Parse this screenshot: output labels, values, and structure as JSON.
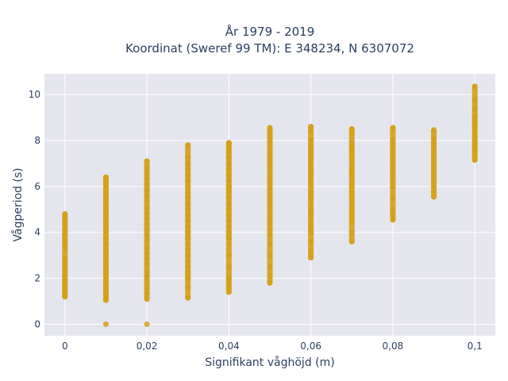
{
  "chart_data": {
    "type": "scatter",
    "title_line1": "År 1979 - 2019",
    "title_line2": "Koordinat (Sweref 99 TM): E 348234, N 6307072",
    "xlabel": "Signifikant våghöjd (m)",
    "ylabel": "Vågperiod (s)",
    "xlim": [
      -0.005,
      0.105
    ],
    "ylim": [
      -0.5,
      10.9
    ],
    "xticks": [
      0,
      0.02,
      0.04,
      0.06,
      0.08,
      0.1
    ],
    "xtick_labels": [
      "0",
      "0,02",
      "0,04",
      "0,06",
      "0,08",
      "0,1"
    ],
    "yticks": [
      0,
      2,
      4,
      6,
      8,
      10
    ],
    "ytick_labels": [
      "0",
      "2",
      "4",
      "6",
      "8",
      "10"
    ],
    "grid": true,
    "marker_color": "#D4A017",
    "plot_bg": "#E5E5EE",
    "series": [
      {
        "x": [
          0,
          0,
          0,
          0,
          0,
          0,
          0,
          0,
          0,
          0,
          0,
          0,
          0,
          0,
          0,
          0,
          0,
          0,
          0,
          0,
          0,
          0
        ],
        "y": [
          4.8,
          4.65,
          4.45,
          4.3,
          4.1,
          3.9,
          3.7,
          3.5,
          3.35,
          2.85,
          2.7,
          2.55,
          2.35,
          2.15,
          2.0,
          1.85,
          1.7,
          1.6,
          1.5,
          1.4,
          1.3,
          1.2
        ]
      },
      {
        "x": [
          0.01,
          0.01,
          0.01,
          0.01,
          0.01,
          0.01,
          0.01,
          0.01,
          0.01,
          0.01,
          0.01,
          0.01,
          0.01,
          0.01,
          0.01,
          0.01,
          0.01,
          0.01,
          0.01,
          0.01,
          0.01,
          0.01,
          0.01
        ],
        "y": [
          6.4,
          6.2,
          6.0,
          5.75,
          5.5,
          5.25,
          5.0,
          4.75,
          4.5,
          4.25,
          4.0,
          3.75,
          3.5,
          3.25,
          3.0,
          2.75,
          2.5,
          2.25,
          2.0,
          1.75,
          1.5,
          1.25,
          1.05
        ]
      },
      {
        "x": [
          0.01,
          0.02
        ],
        "y": [
          0.0,
          0.0
        ]
      },
      {
        "x": [
          0.02,
          0.02,
          0.02,
          0.02,
          0.02,
          0.02,
          0.02,
          0.02,
          0.02,
          0.02,
          0.02,
          0.02,
          0.02,
          0.02,
          0.02,
          0.02,
          0.02,
          0.02,
          0.02,
          0.02,
          0.02,
          0.02,
          0.02,
          0.02,
          0.02
        ],
        "y": [
          7.1,
          6.85,
          6.6,
          6.35,
          6.1,
          5.85,
          5.6,
          5.35,
          5.1,
          4.85,
          4.6,
          4.35,
          4.1,
          3.85,
          3.6,
          3.35,
          3.1,
          2.85,
          2.6,
          2.35,
          2.1,
          1.85,
          1.6,
          1.35,
          1.1
        ]
      },
      {
        "x": [
          0.03,
          0.03,
          0.03,
          0.03,
          0.03,
          0.03,
          0.03,
          0.03,
          0.03,
          0.03,
          0.03,
          0.03,
          0.03,
          0.03,
          0.03,
          0.03,
          0.03,
          0.03,
          0.03,
          0.03,
          0.03,
          0.03,
          0.03,
          0.03,
          0.03
        ],
        "y": [
          7.8,
          7.25,
          7.0,
          6.75,
          6.5,
          6.25,
          6.0,
          5.75,
          5.5,
          5.25,
          5.0,
          4.75,
          4.5,
          4.25,
          4.0,
          3.75,
          3.5,
          3.25,
          3.0,
          2.75,
          2.5,
          2.25,
          2.0,
          1.6,
          1.15
        ]
      },
      {
        "x": [
          0.04,
          0.04,
          0.04,
          0.04,
          0.04,
          0.04,
          0.04,
          0.04,
          0.04,
          0.04,
          0.04,
          0.04,
          0.04,
          0.04,
          0.04,
          0.04,
          0.04,
          0.04,
          0.04,
          0.04,
          0.04,
          0.04,
          0.04,
          0.04,
          0.04
        ],
        "y": [
          7.9,
          7.7,
          7.5,
          7.25,
          7.0,
          6.75,
          6.5,
          6.25,
          6.0,
          5.75,
          5.5,
          5.25,
          5.0,
          4.75,
          4.5,
          4.25,
          4.0,
          3.75,
          3.5,
          3.0,
          2.5,
          2.0,
          1.75,
          1.55,
          1.4
        ]
      },
      {
        "x": [
          0.05,
          0.05,
          0.05,
          0.05,
          0.05,
          0.05,
          0.05,
          0.05,
          0.05,
          0.05,
          0.05,
          0.05,
          0.05,
          0.05,
          0.05,
          0.05,
          0.05,
          0.05,
          0.05,
          0.05,
          0.05,
          0.05,
          0.05,
          0.05,
          0.05
        ],
        "y": [
          8.55,
          8.35,
          8.15,
          7.9,
          7.65,
          7.4,
          7.15,
          6.9,
          6.65,
          6.4,
          6.15,
          5.9,
          5.65,
          5.4,
          5.15,
          4.9,
          4.65,
          4.4,
          4.15,
          3.9,
          3.5,
          3.0,
          2.5,
          2.1,
          1.8
        ]
      },
      {
        "x": [
          0.06,
          0.06,
          0.06,
          0.06,
          0.06,
          0.06,
          0.06,
          0.06,
          0.06,
          0.06,
          0.06,
          0.06,
          0.06,
          0.06,
          0.06,
          0.06,
          0.06,
          0.06,
          0.06,
          0.06,
          0.06,
          0.06
        ],
        "y": [
          8.6,
          8.4,
          8.0,
          7.75,
          7.5,
          7.25,
          7.0,
          6.75,
          6.5,
          6.25,
          6.0,
          5.75,
          5.5,
          5.25,
          5.0,
          4.75,
          4.5,
          4.25,
          4.0,
          3.6,
          3.2,
          2.9
        ]
      },
      {
        "x": [
          0.07,
          0.07,
          0.07,
          0.07,
          0.07,
          0.07,
          0.07,
          0.07,
          0.07,
          0.07,
          0.07,
          0.07,
          0.07,
          0.07,
          0.07,
          0.07,
          0.07,
          0.07,
          0.07
        ],
        "y": [
          8.5,
          8.35,
          7.9,
          7.7,
          7.5,
          7.25,
          7.0,
          6.75,
          6.5,
          6.25,
          6.0,
          5.75,
          5.5,
          5.25,
          5.0,
          4.75,
          4.5,
          4.0,
          3.6
        ]
      },
      {
        "x": [
          0.08,
          0.08,
          0.08,
          0.08,
          0.08,
          0.08,
          0.08,
          0.08,
          0.08,
          0.08,
          0.08,
          0.08,
          0.08,
          0.08,
          0.08
        ],
        "y": [
          8.55,
          8.0,
          7.8,
          7.6,
          7.4,
          7.2,
          7.0,
          6.75,
          6.5,
          6.25,
          6.0,
          5.5,
          5.0,
          4.75,
          4.55
        ]
      },
      {
        "x": [
          0.09,
          0.09,
          0.09,
          0.09,
          0.09,
          0.09,
          0.09,
          0.09,
          0.09,
          0.09,
          0.09,
          0.09,
          0.09
        ],
        "y": [
          8.45,
          8.1,
          7.9,
          7.7,
          7.5,
          7.25,
          7.0,
          6.75,
          6.5,
          6.25,
          6.0,
          5.75,
          5.55
        ]
      },
      {
        "x": [
          0.1,
          0.1,
          0.1,
          0.1,
          0.1,
          0.1,
          0.1,
          0.1,
          0.1,
          0.1,
          0.1,
          0.1,
          0.1,
          0.1
        ],
        "y": [
          10.35,
          9.75,
          9.35,
          9.05,
          8.9,
          8.75,
          8.55,
          8.35,
          8.15,
          7.95,
          7.75,
          7.55,
          7.35,
          7.15
        ]
      }
    ]
  }
}
